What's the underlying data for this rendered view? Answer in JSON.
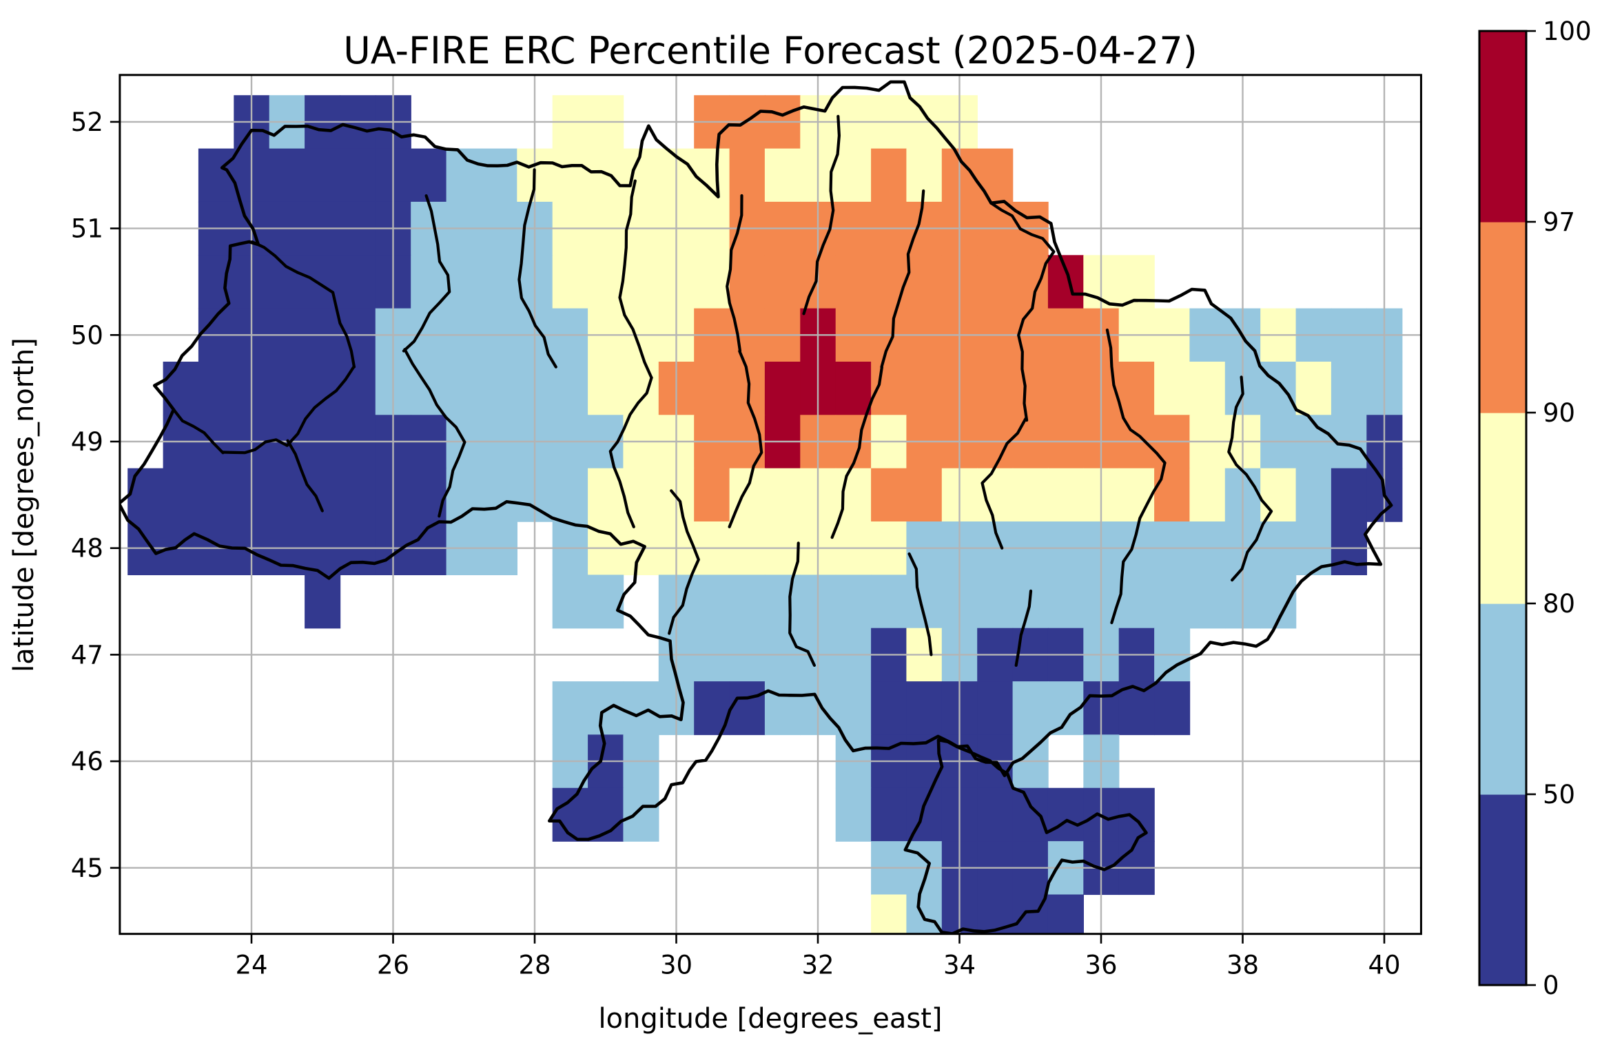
{
  "figure": {
    "kind": "geographic heatmap figure"
  },
  "chart_data": {
    "type": "heatmap",
    "title": "UA-FIRE ERC Percentile Forecast (2025-04-27)",
    "xlabel": "longitude [degrees_east]",
    "ylabel": "latitude [degrees_north]",
    "xlim": [
      22.14,
      40.52
    ],
    "ylim": [
      44.38,
      52.44
    ],
    "xticks": [
      24,
      26,
      28,
      30,
      32,
      34,
      36,
      38,
      40
    ],
    "yticks": [
      45,
      46,
      47,
      48,
      49,
      50,
      51,
      52
    ],
    "grid_on": true,
    "colorbar": {
      "bounds": [
        0,
        50,
        80,
        90,
        97,
        100
      ],
      "tick_labels": [
        "0",
        "50",
        "80",
        "90",
        "97",
        "100"
      ],
      "segment_colors": [
        "#33398f",
        "#96c7df",
        "#feffc0",
        "#f4884e",
        "#a50029"
      ],
      "spacing": "uniform"
    },
    "heatmap": {
      "lon_origin": 22.25,
      "lat_origin": 52.25,
      "cell_deg": 0.5,
      "bin_codes": {
        "b": "0-50",
        "l": "50-80",
        "y": "80-90",
        "o": "90-97",
        "r": "97-100"
      },
      "rows": [
        "...blbbb....yy..oooyyyyy............",
        "..bbbbbbbllyyyyyyoyyyoyoo...........",
        "..bbbbbbllllyyyyyooooooooo..........",
        "..bbbbbbllllyyyyyoooooooooryy.......",
        "..bbbbbllllllyyyooorooooooooyyllylll",
        ".bbbbbbllllllyyooorrrooooooooyyllyll",
        ".bbbbbbbblllllyyoorooyooooooooyylllb",
        "bbbbbbbbbllllyyyoyyyyooyyyyyyoylylbb",
        "bbbbbbbbbll.lyyyyyyyyyllllllllllllb.",
        ".....b......ll.llllllllllllllllll...",
        "...............llllllbylbbblbl......",
        "............llllbblllbbbbllbbb......",
        "............lbl.....lbbbbl.l........",
        "............bbl.....lbbbbbbbb.......",
        ".....................llbbblbb.......",
        ".....................ylbbbb........."
      ]
    },
    "boundaries": {
      "outline": [
        [
          23.6,
          51.55
        ],
        [
          24.0,
          51.9
        ],
        [
          24.95,
          51.95
        ],
        [
          25.8,
          51.95
        ],
        [
          26.45,
          51.85
        ],
        [
          27.2,
          51.6
        ],
        [
          27.75,
          51.6
        ],
        [
          28.25,
          51.6
        ],
        [
          28.8,
          51.55
        ],
        [
          29.35,
          51.4
        ],
        [
          29.6,
          51.95
        ],
        [
          30.55,
          51.3
        ],
        [
          30.6,
          51.9
        ],
        [
          31.35,
          52.1
        ],
        [
          32.1,
          52.1
        ],
        [
          32.35,
          52.3
        ],
        [
          33.2,
          52.35
        ],
        [
          34.05,
          51.65
        ],
        [
          34.45,
          51.25
        ],
        [
          35.3,
          51.05
        ],
        [
          35.6,
          50.4
        ],
        [
          36.3,
          50.3
        ],
        [
          37.45,
          50.4
        ],
        [
          38.05,
          49.95
        ],
        [
          38.35,
          49.6
        ],
        [
          39.2,
          49.05
        ],
        [
          39.8,
          48.85
        ],
        [
          40.1,
          48.4
        ],
        [
          39.7,
          48.1
        ],
        [
          39.95,
          47.85
        ],
        [
          39.1,
          47.85
        ],
        [
          38.7,
          47.6
        ],
        [
          38.35,
          47.1
        ],
        [
          37.55,
          47.1
        ],
        [
          36.6,
          46.7
        ],
        [
          35.85,
          46.6
        ],
        [
          35.0,
          46.1
        ],
        [
          34.65,
          45.9
        ],
        [
          34.1,
          46.1
        ],
        [
          33.7,
          46.2
        ],
        [
          33.75,
          45.95
        ],
        [
          33.25,
          45.2
        ],
        [
          33.55,
          45.05
        ],
        [
          33.4,
          44.6
        ],
        [
          33.75,
          44.4
        ],
        [
          34.5,
          44.4
        ],
        [
          35.1,
          44.6
        ],
        [
          35.45,
          45.1
        ],
        [
          36.2,
          45.0
        ],
        [
          36.65,
          45.35
        ],
        [
          36.4,
          45.5
        ],
        [
          35.8,
          45.45
        ],
        [
          35.25,
          45.35
        ],
        [
          34.9,
          45.7
        ],
        [
          34.55,
          45.95
        ],
        [
          34.3,
          46.05
        ],
        [
          33.7,
          46.2
        ],
        [
          33.0,
          46.15
        ],
        [
          32.5,
          46.1
        ],
        [
          31.95,
          46.6
        ],
        [
          31.6,
          46.65
        ],
        [
          30.85,
          46.6
        ],
        [
          30.5,
          46.1
        ],
        [
          30.2,
          45.9
        ],
        [
          29.7,
          45.6
        ],
        [
          28.75,
          45.25
        ],
        [
          28.2,
          45.45
        ],
        [
          28.95,
          46.0
        ],
        [
          28.95,
          46.5
        ],
        [
          29.6,
          46.45
        ],
        [
          30.1,
          46.4
        ],
        [
          29.9,
          47.1
        ],
        [
          29.2,
          47.4
        ],
        [
          29.55,
          48.0
        ],
        [
          28.9,
          48.15
        ],
        [
          27.6,
          48.45
        ],
        [
          26.65,
          48.25
        ],
        [
          26.2,
          48.0
        ],
        [
          25.1,
          47.75
        ],
        [
          24.25,
          47.9
        ],
        [
          23.2,
          48.1
        ],
        [
          22.65,
          47.95
        ],
        [
          22.15,
          48.4
        ],
        [
          22.7,
          49.05
        ],
        [
          22.9,
          49.3
        ],
        [
          22.65,
          49.5
        ],
        [
          23.65,
          50.3
        ],
        [
          23.7,
          50.85
        ],
        [
          24.1,
          50.85
        ],
        [
          23.65,
          51.55
        ]
      ],
      "internal": [
        [
          [
            24.0,
            50.85
          ],
          [
            25.15,
            50.4
          ],
          [
            25.45,
            49.7
          ]
        ],
        [
          [
            26.45,
            51.3
          ],
          [
            26.8,
            50.4
          ],
          [
            26.15,
            49.85
          ]
        ],
        [
          [
            28.0,
            51.55
          ],
          [
            27.75,
            50.5
          ],
          [
            28.3,
            49.7
          ]
        ],
        [
          [
            29.4,
            51.45
          ],
          [
            29.2,
            50.35
          ],
          [
            29.65,
            49.6
          ]
        ],
        [
          [
            30.95,
            51.3
          ],
          [
            30.7,
            50.45
          ],
          [
            30.9,
            49.85
          ]
        ],
        [
          [
            32.3,
            52.05
          ],
          [
            32.15,
            51.0
          ],
          [
            31.8,
            50.2
          ]
        ],
        [
          [
            33.5,
            51.35
          ],
          [
            33.2,
            50.45
          ],
          [
            32.9,
            49.7
          ]
        ],
        [
          [
            34.45,
            51.25
          ],
          [
            35.3,
            50.8
          ],
          [
            34.85,
            50.0
          ],
          [
            34.95,
            49.2
          ]
        ],
        [
          [
            36.1,
            50.05
          ],
          [
            36.3,
            49.2
          ],
          [
            36.9,
            48.8
          ]
        ],
        [
          [
            38.0,
            49.6
          ],
          [
            37.8,
            48.9
          ],
          [
            38.4,
            48.35
          ]
        ],
        [
          [
            25.45,
            49.7
          ],
          [
            24.5,
            49.0
          ],
          [
            23.6,
            48.9
          ]
        ],
        [
          [
            26.15,
            49.85
          ],
          [
            27.0,
            49.0
          ],
          [
            26.65,
            48.3
          ]
        ],
        [
          [
            29.65,
            49.6
          ],
          [
            29.05,
            48.9
          ],
          [
            29.4,
            48.2
          ]
        ],
        [
          [
            30.9,
            49.85
          ],
          [
            31.2,
            48.9
          ],
          [
            30.75,
            48.2
          ]
        ],
        [
          [
            32.9,
            49.7
          ],
          [
            32.5,
            48.8
          ],
          [
            32.2,
            48.1
          ]
        ],
        [
          [
            34.95,
            49.2
          ],
          [
            34.3,
            48.6
          ],
          [
            34.6,
            48.0
          ]
        ],
        [
          [
            36.9,
            48.8
          ],
          [
            36.4,
            48.0
          ],
          [
            36.15,
            47.3
          ]
        ],
        [
          [
            38.4,
            48.35
          ],
          [
            37.85,
            47.7
          ]
        ],
        [
          [
            29.95,
            48.55
          ],
          [
            30.3,
            47.9
          ],
          [
            29.9,
            47.2
          ]
        ],
        [
          [
            31.7,
            48.05
          ],
          [
            31.6,
            47.2
          ],
          [
            31.95,
            46.9
          ]
        ],
        [
          [
            33.3,
            47.95
          ],
          [
            33.6,
            47.0
          ]
        ],
        [
          [
            35.0,
            47.6
          ],
          [
            34.8,
            46.9
          ]
        ],
        [
          [
            23.6,
            48.9
          ],
          [
            22.9,
            49.3
          ]
        ],
        [
          [
            24.5,
            49.0
          ],
          [
            25.0,
            48.35
          ]
        ]
      ]
    }
  },
  "colors": {
    "grid": "#b4b4b4",
    "frame": "#000000",
    "boundary": "#000000",
    "background": "#ffffff"
  }
}
